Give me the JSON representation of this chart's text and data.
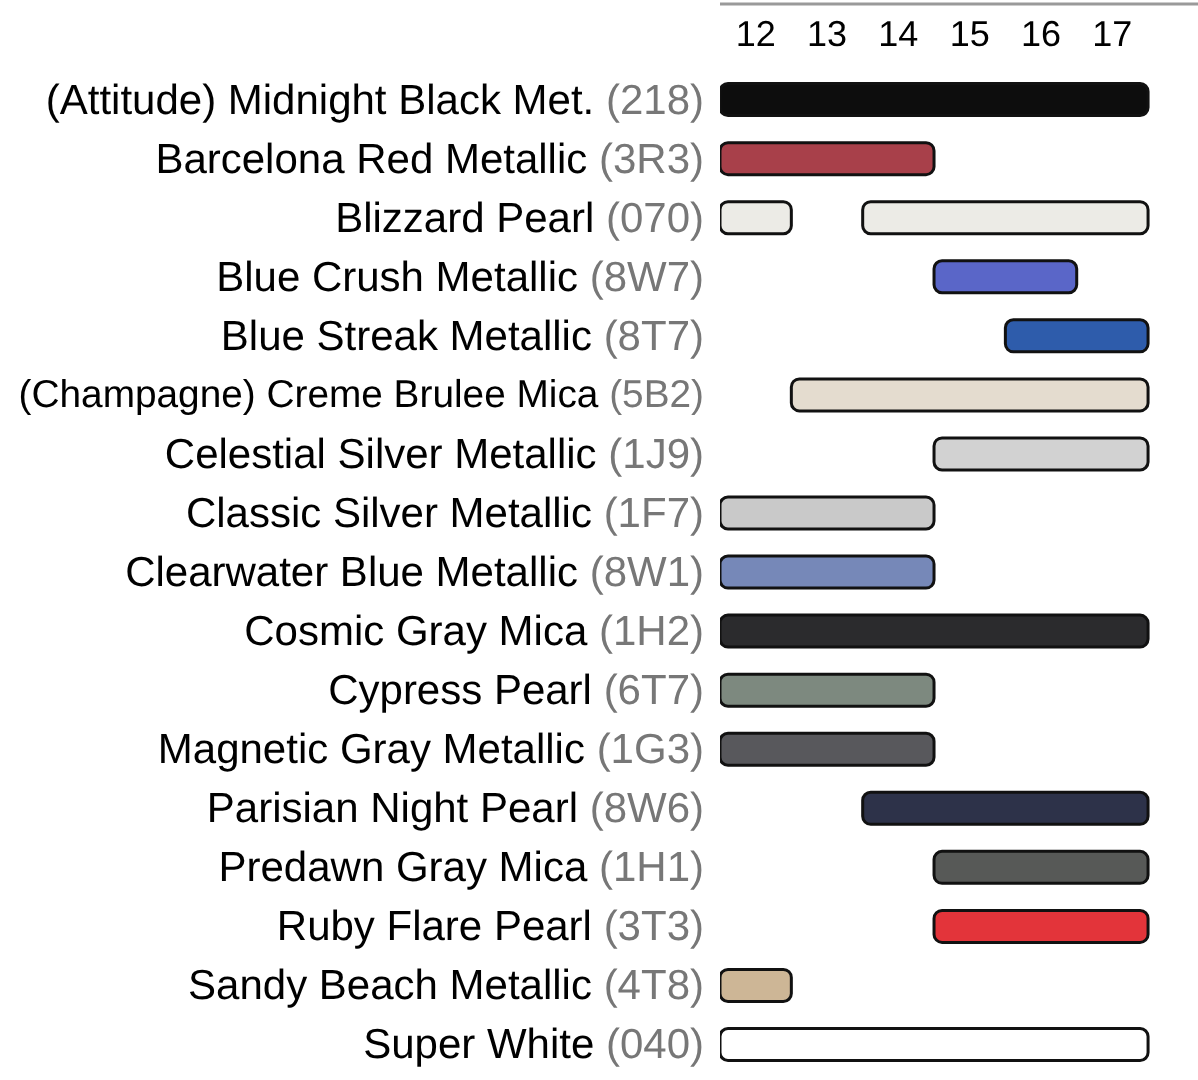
{
  "chart_data": {
    "type": "bar",
    "orientation": "horizontal",
    "categories": [
      "(Attitude) Midnight Black Met. (218)",
      "Barcelona Red Metallic (3R3)",
      "Blizzard Pearl (070)",
      "Blue Crush Metallic (8W7)",
      "Blue Streak Metallic (8T7)",
      "(Champagne) Creme Brulee Mica (5B2)",
      "Celestial Silver Metallic (1J9)",
      "Classic Silver Metallic (1F7)",
      "Clearwater Blue Metallic (8W1)",
      "Cosmic Gray Mica (1H2)",
      "Cypress Pearl (6T7)",
      "Magnetic Gray Metallic (1G3)",
      "Parisian Night Pearl (8W6)",
      "Predawn Gray Mica (1H1)",
      "Ruby Flare Pearl (3T3)",
      "Sandy Beach Metallic (4T8)",
      "Super White (040)"
    ],
    "series": [
      {
        "colors": [
          "#0d0d0d",
          "#a8404a",
          "#ecebe6",
          "#5a66c8",
          "#2e5cab",
          "#e4dccf",
          "#d2d2d2",
          "#c9c9c9",
          "#7688b8",
          "#2b2b2d",
          "#7d897f",
          "#58585c",
          "#2d3249",
          "#575957",
          "#e3343a",
          "#cdb696",
          "#ffffff"
        ],
        "base": [
          11.5,
          11.5,
          11.5,
          14.5,
          15.5,
          12.5,
          14.5,
          11.5,
          11.5,
          11.5,
          11.5,
          11.5,
          13.5,
          14.5,
          14.5,
          11.5,
          11.5
        ],
        "values": [
          6,
          3,
          1,
          2,
          2,
          5,
          3,
          3,
          3,
          6,
          3,
          3,
          4,
          3,
          3,
          1,
          6
        ]
      },
      {
        "color": "#ecebe6",
        "base": [
          null,
          null,
          13.5,
          null,
          null,
          null,
          null,
          null,
          null,
          null,
          null,
          null,
          null,
          null,
          null,
          null,
          null
        ],
        "values": [
          null,
          null,
          4,
          null,
          null,
          null,
          null,
          null,
          null,
          null,
          null,
          null,
          null,
          null,
          null,
          null,
          null
        ]
      }
    ],
    "xlim": [
      11.5,
      18.2
    ],
    "xticks": [
      12,
      13,
      14,
      15,
      16,
      17
    ]
  }
}
